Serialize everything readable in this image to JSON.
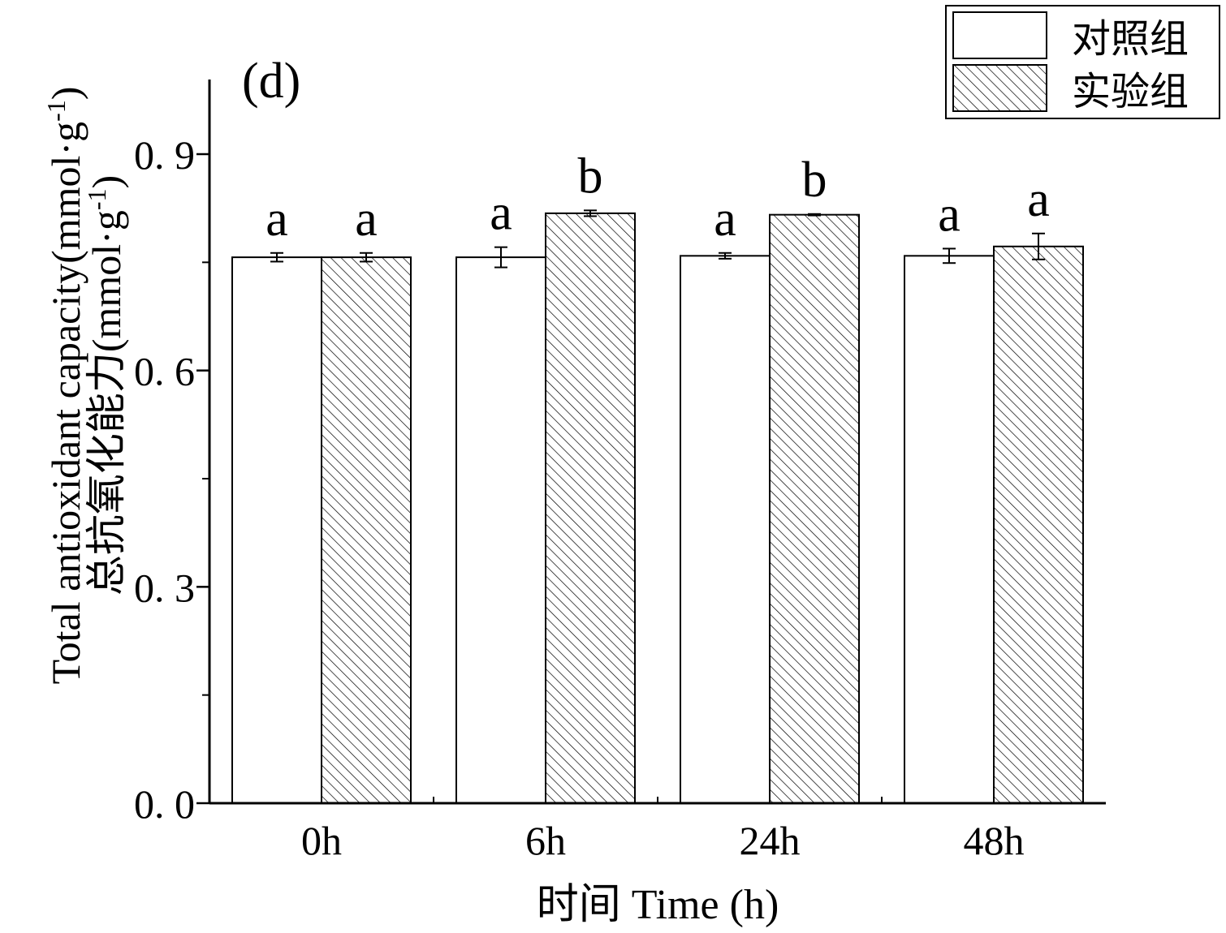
{
  "chart_data": {
    "type": "bar",
    "panel_label": "(d)",
    "categories": [
      "0h",
      "6h",
      "24h",
      "48h"
    ],
    "series": [
      {
        "name": "对照组",
        "fill": "plain",
        "values": [
          0.757,
          0.757,
          0.759,
          0.759
        ],
        "errors": [
          0.006,
          0.014,
          0.004,
          0.01
        ],
        "letters": [
          "a",
          "a",
          "a",
          "a"
        ]
      },
      {
        "name": "实验组",
        "fill": "hatched",
        "values": [
          0.757,
          0.818,
          0.816,
          0.772
        ],
        "errors": [
          0.006,
          0.004,
          0.001,
          0.018
        ],
        "letters": [
          "a",
          "b",
          "b",
          "a"
        ]
      }
    ],
    "xlabel": "时间 Time (h)",
    "ylabel": "总抗氧化能力",
    "ylabel_en": "Total antioxidant capacity(mmol·g",
    "ylabel_sup": "-1",
    "ylabel_close": ")",
    "ylim": [
      0,
      1.0
    ],
    "yticks": [
      "0. 0",
      "0. 3",
      "0. 6",
      "0. 9"
    ],
    "ytick_values": [
      0,
      0.3,
      0.6,
      0.9
    ],
    "grid": false,
    "legend_position": "top-right",
    "colors": {
      "stroke": "#000000",
      "fill": "#ffffff"
    }
  }
}
